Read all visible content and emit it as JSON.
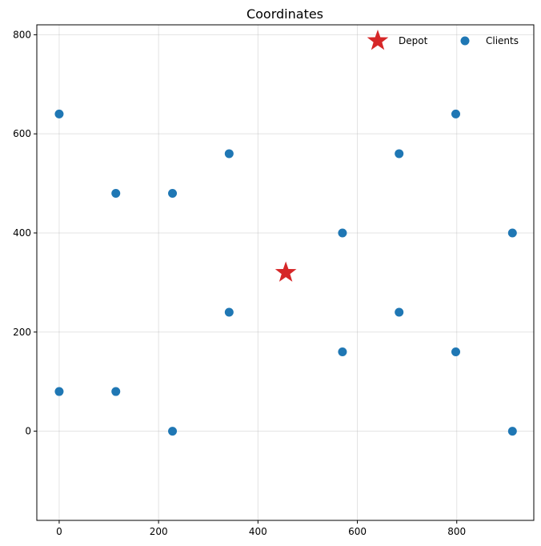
{
  "chart_data": {
    "type": "scatter",
    "title": "Coordinates",
    "xlabel": "",
    "ylabel": "",
    "xlim": [
      -45,
      955
    ],
    "ylim": [
      -180,
      820
    ],
    "xticks": [
      0,
      200,
      400,
      600,
      800
    ],
    "yticks": [
      0,
      200,
      400,
      600,
      800
    ],
    "grid": true,
    "legend_position": "top-right",
    "series": [
      {
        "name": "Depot",
        "marker": "star",
        "color": "#d62728",
        "points": [
          [
            456,
            320
          ]
        ]
      },
      {
        "name": "Clients",
        "marker": "circle",
        "color": "#1f77b4",
        "points": [
          [
            0,
            640
          ],
          [
            114,
            480
          ],
          [
            228,
            480
          ],
          [
            342,
            560
          ],
          [
            570,
            400
          ],
          [
            684,
            560
          ],
          [
            798,
            640
          ],
          [
            912,
            400
          ],
          [
            342,
            240
          ],
          [
            684,
            240
          ],
          [
            570,
            160
          ],
          [
            798,
            160
          ],
          [
            0,
            80
          ],
          [
            114,
            80
          ],
          [
            228,
            0
          ],
          [
            912,
            0
          ]
        ]
      }
    ]
  }
}
